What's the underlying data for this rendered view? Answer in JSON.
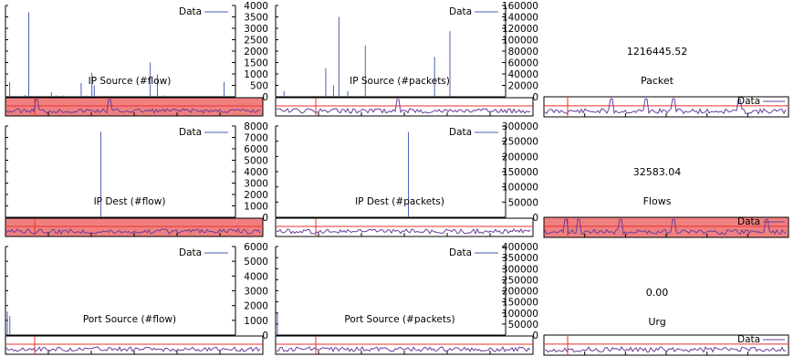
{
  "colors": {
    "series": "#4c5fb8",
    "mini_series": "#6a3d9a",
    "threshold": "#e8322b",
    "alarm_fill": "#f08080",
    "frame": "#000000"
  },
  "legend_label": "Data",
  "chart_data": [
    {
      "type": "bar",
      "title": "IP Source (#flow)",
      "ylim": [
        0,
        4000
      ],
      "yticks": [
        0,
        500,
        1000,
        1500,
        2000,
        2500,
        3000,
        3500,
        4000
      ],
      "legend": "Data",
      "alarm": true,
      "values": [
        0,
        0,
        650,
        0,
        0,
        0,
        0,
        0,
        0,
        0,
        0,
        30,
        0,
        0,
        0,
        80,
        0,
        40,
        3700,
        0,
        0,
        0,
        0,
        0,
        0,
        0,
        0,
        0,
        0,
        0,
        0,
        0,
        0,
        0,
        0,
        0,
        0,
        200,
        0,
        0,
        0,
        60,
        0,
        0,
        0,
        0,
        0,
        50,
        0,
        0,
        0,
        0,
        0,
        0,
        0,
        0,
        0,
        0,
        0,
        0,
        0,
        0,
        600,
        0,
        0,
        0,
        0,
        50,
        0,
        0,
        0,
        1050,
        0,
        500,
        0,
        0,
        0,
        0,
        0,
        0,
        0,
        0,
        0,
        0,
        0,
        0,
        0,
        0,
        0,
        0,
        0,
        0,
        0,
        0,
        0,
        0,
        0,
        0,
        0,
        0,
        0,
        0,
        0,
        0,
        0,
        0,
        0,
        0,
        0,
        0,
        0,
        0,
        0,
        0,
        0,
        0,
        0,
        0,
        0,
        0,
        1500,
        0,
        0,
        0,
        0,
        0,
        980,
        0,
        0,
        0,
        0,
        60,
        0,
        0,
        0,
        0,
        0,
        0,
        0,
        0,
        0,
        0,
        0,
        0,
        0,
        0,
        0,
        0,
        0,
        0,
        0,
        0,
        0,
        0,
        0,
        0,
        0,
        0,
        0,
        0,
        0,
        0,
        0,
        0,
        0,
        0,
        0,
        0,
        0,
        0,
        0,
        0,
        0,
        0,
        0,
        0,
        0,
        0,
        0,
        0,
        0,
        0,
        650,
        0,
        0,
        0,
        0,
        0,
        0,
        0
      ]
    },
    {
      "type": "bar",
      "title": "IP Source (#packets)",
      "ylim": [
        0,
        160000
      ],
      "yticks": [
        0,
        20000,
        40000,
        60000,
        80000,
        100000,
        120000,
        140000,
        160000
      ],
      "legend": "Data",
      "alarm": false,
      "values": [
        0,
        0,
        0,
        0,
        0,
        0,
        10000,
        0,
        0,
        0,
        0,
        0,
        0,
        0,
        0,
        0,
        0,
        0,
        0,
        0,
        0,
        0,
        0,
        0,
        0,
        0,
        0,
        0,
        0,
        0,
        0,
        0,
        0,
        0,
        0,
        0,
        0,
        0,
        0,
        0,
        0,
        0,
        0,
        0,
        50000,
        0,
        0,
        0,
        0,
        0,
        0,
        20000,
        0,
        0,
        0,
        0,
        140000,
        0,
        0,
        0,
        0,
        0,
        0,
        0,
        10000,
        0,
        0,
        0,
        0,
        0,
        0,
        0,
        0,
        0,
        0,
        0,
        0,
        0,
        0,
        0,
        90000,
        0,
        0,
        0,
        0,
        0,
        0,
        0,
        0,
        0,
        0,
        0,
        0,
        0,
        0,
        0,
        0,
        0,
        0,
        0,
        0,
        0,
        0,
        0,
        0,
        0,
        0,
        0,
        0,
        0,
        0,
        0,
        0,
        0,
        0,
        0,
        0,
        0,
        0,
        0,
        0,
        0,
        0,
        0,
        0,
        0,
        0,
        0,
        0,
        0,
        0,
        0,
        0,
        0,
        0,
        0,
        0,
        0,
        0,
        0,
        0,
        0,
        0,
        70000,
        0,
        0,
        0,
        0,
        0,
        0,
        0,
        0,
        0,
        0,
        0,
        0,
        0,
        115000,
        0,
        0,
        0,
        0,
        0,
        0,
        0,
        0,
        0,
        0,
        0,
        0,
        0,
        0,
        0,
        0,
        0,
        0,
        0,
        0,
        0,
        0,
        0,
        0,
        0,
        0,
        0,
        0,
        0,
        0,
        0,
        0,
        0,
        0,
        0,
        0,
        0,
        0,
        0,
        0,
        0,
        0,
        0,
        0,
        0,
        0,
        0,
        0
      ]
    },
    {
      "type": "bar",
      "title": "IP Dest (#flow)",
      "ylim": [
        0,
        8000
      ],
      "yticks": [
        0,
        1000,
        2000,
        3000,
        4000,
        5000,
        6000,
        7000,
        8000
      ],
      "legend": "Data",
      "alarm": true,
      "values": [
        0,
        0,
        0,
        0,
        0,
        0,
        0,
        0,
        0,
        0,
        0,
        0,
        0,
        0,
        0,
        0,
        0,
        0,
        0,
        0,
        0,
        0,
        0,
        0,
        0,
        0,
        0,
        0,
        0,
        0,
        0,
        0,
        0,
        0,
        0,
        0,
        0,
        0,
        0,
        0,
        0,
        0,
        0,
        0,
        0,
        0,
        0,
        0,
        0,
        0,
        0,
        0,
        0,
        0,
        0,
        0,
        0,
        0,
        0,
        0,
        0,
        0,
        0,
        0,
        0,
        0,
        0,
        0,
        0,
        0,
        0,
        0,
        0,
        0,
        0,
        0,
        0,
        0,
        0,
        7500,
        0,
        0,
        0,
        0,
        0,
        0,
        0,
        0,
        0,
        0,
        0,
        0,
        0,
        0,
        0,
        0,
        0,
        0,
        0,
        0,
        0,
        0,
        0,
        0,
        0,
        0,
        0,
        0,
        0,
        0,
        0,
        0,
        0,
        0,
        0,
        0,
        0,
        0,
        0,
        0,
        0,
        0,
        0,
        0,
        0,
        0,
        0,
        0,
        0,
        0,
        0,
        0,
        0,
        0,
        0,
        0,
        0,
        0,
        0,
        0,
        0,
        0,
        0,
        0,
        0,
        0,
        0,
        0,
        0,
        0,
        0,
        0,
        0,
        0,
        0,
        0,
        0,
        0,
        0,
        0,
        0,
        0,
        0,
        0,
        0,
        0,
        0,
        0,
        0,
        0,
        0,
        0,
        0,
        0,
        0,
        0,
        0,
        0,
        0,
        0,
        0,
        0,
        0,
        0,
        0,
        0,
        0,
        0,
        0,
        0,
        0
      ]
    },
    {
      "type": "bar",
      "title": "IP Dest (#packets)",
      "ylim": [
        0,
        300000
      ],
      "yticks": [
        0,
        50000,
        100000,
        150000,
        200000,
        250000,
        300000
      ],
      "legend": "Data",
      "alarm": false,
      "values": [
        0,
        0,
        0,
        0,
        0,
        0,
        0,
        0,
        0,
        0,
        0,
        0,
        0,
        0,
        0,
        0,
        0,
        0,
        0,
        0,
        0,
        0,
        0,
        0,
        0,
        0,
        0,
        0,
        0,
        0,
        0,
        0,
        0,
        0,
        0,
        0,
        0,
        0,
        0,
        0,
        0,
        0,
        0,
        0,
        0,
        0,
        0,
        0,
        0,
        0,
        0,
        0,
        0,
        0,
        0,
        0,
        0,
        0,
        0,
        0,
        0,
        0,
        0,
        0,
        0,
        0,
        0,
        0,
        0,
        0,
        0,
        0,
        0,
        0,
        0,
        0,
        0,
        0,
        0,
        0,
        0,
        0,
        0,
        0,
        0,
        0,
        0,
        0,
        0,
        0,
        0,
        0,
        0,
        0,
        0,
        0,
        0,
        0,
        0,
        0,
        0,
        0,
        0,
        280000,
        0,
        0,
        0,
        0,
        0,
        0,
        0,
        0,
        0,
        0,
        0,
        0,
        0,
        0,
        0,
        0,
        0,
        0,
        0,
        0,
        0,
        0,
        0,
        0,
        0,
        0,
        0,
        0,
        0,
        0,
        0,
        0,
        0,
        0,
        0,
        0,
        0,
        0,
        0,
        0,
        0,
        0,
        0,
        0,
        0,
        0,
        0,
        0,
        0,
        0,
        0,
        0,
        0,
        0,
        0,
        0,
        0,
        0,
        0,
        0,
        0,
        0,
        0,
        0,
        0,
        0,
        0,
        0,
        0,
        0,
        0,
        0,
        0,
        0
      ]
    },
    {
      "type": "bar",
      "title": "Port Source (#flow)",
      "ylim": [
        0,
        6000
      ],
      "yticks": [
        0,
        1000,
        2000,
        3000,
        4000,
        5000,
        6000
      ],
      "legend": "Data",
      "alarm": false,
      "values": [
        1600,
        0,
        1300,
        0,
        0,
        0,
        0,
        0,
        0,
        0,
        0,
        0,
        0,
        0,
        0,
        0,
        0,
        0,
        0,
        0,
        0,
        0,
        0,
        0,
        0,
        0,
        0,
        0,
        0,
        0,
        0,
        0,
        0,
        0,
        0,
        0,
        0,
        0,
        0,
        0,
        0,
        0,
        0,
        0,
        0,
        0,
        0,
        0,
        0,
        0,
        0,
        0,
        0,
        0,
        0,
        0,
        0,
        0,
        0,
        0,
        0,
        0,
        0,
        0,
        0,
        0,
        0,
        0,
        0,
        0,
        0,
        0,
        0,
        0,
        0,
        0,
        0,
        0,
        0,
        0,
        0,
        0,
        0,
        0,
        0,
        0,
        0,
        0,
        0,
        0,
        0,
        0,
        0,
        0,
        0,
        0,
        0,
        0,
        0,
        0,
        0,
        0,
        0,
        0,
        0,
        0,
        0,
        0,
        0,
        0,
        0,
        0,
        0,
        0,
        0,
        0,
        0,
        0,
        0,
        0,
        0,
        0,
        0,
        0,
        0,
        0,
        0,
        0,
        0,
        0,
        0,
        0,
        0,
        0,
        0,
        0,
        0,
        0,
        0,
        0,
        0,
        0,
        0,
        0,
        0,
        0,
        0,
        0,
        0,
        0,
        0,
        0,
        0,
        0,
        0,
        0,
        0,
        0,
        0,
        0,
        0,
        0,
        0,
        0,
        0,
        0,
        0,
        0,
        0,
        0,
        0,
        0,
        0,
        0,
        0,
        0,
        0,
        0,
        0,
        0
      ]
    },
    {
      "type": "bar",
      "title": "Port Source (#packets)",
      "ylim": [
        0,
        400000
      ],
      "yticks": [
        0,
        50000,
        100000,
        150000,
        200000,
        250000,
        300000,
        350000,
        400000
      ],
      "legend": "Data",
      "alarm": false,
      "values": [
        100000,
        0,
        0,
        0,
        0,
        0,
        0,
        0,
        0,
        0,
        0,
        0,
        0,
        0,
        0,
        0,
        0,
        0,
        0,
        0,
        0,
        0,
        0,
        0,
        0,
        0,
        0,
        0,
        0,
        0,
        0,
        0,
        0,
        0,
        0,
        0,
        0,
        0,
        0,
        0,
        0,
        0,
        0,
        0,
        0,
        0,
        0,
        0,
        0,
        0,
        0,
        0,
        0,
        0,
        0,
        0,
        0,
        0,
        0,
        0,
        0,
        0,
        0,
        0,
        0,
        0,
        0,
        0,
        0,
        0,
        0,
        0,
        0,
        0,
        0,
        0,
        0,
        0,
        0,
        0,
        0,
        0,
        0,
        0,
        0,
        0,
        0,
        0,
        0,
        0,
        0,
        0,
        0,
        0,
        0,
        0,
        0,
        0,
        0,
        0,
        0,
        0,
        0,
        0,
        0,
        0,
        0,
        0,
        0,
        0,
        0,
        0,
        0,
        0,
        0,
        0,
        0,
        0,
        0,
        0,
        0,
        0,
        0,
        0,
        0,
        0,
        0,
        0,
        0,
        0,
        0,
        0,
        0,
        0,
        0,
        0,
        0,
        0,
        0,
        0,
        0,
        0,
        0,
        0,
        0,
        0,
        0,
        0,
        0,
        0,
        0,
        0,
        0,
        0,
        0,
        0,
        0,
        0,
        0,
        0,
        0,
        0,
        0,
        0,
        0,
        0,
        0,
        0,
        0,
        0,
        0,
        0,
        0,
        0,
        0,
        0,
        0,
        0,
        0,
        0
      ]
    }
  ],
  "stats": [
    {
      "value": "1216445.52",
      "label": "Packet",
      "alarm": false
    },
    {
      "value": "32583.04",
      "label": "Flows",
      "alarm": true
    },
    {
      "value": "0.00",
      "label": "Urg",
      "alarm": false
    }
  ]
}
